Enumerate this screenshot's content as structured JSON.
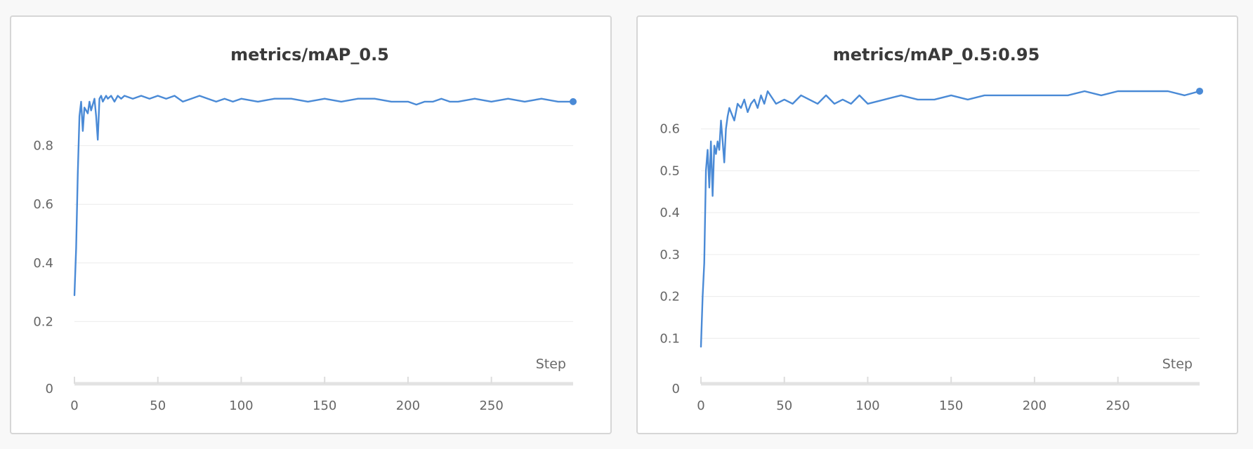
{
  "colors": {
    "series": "#4a8ad6",
    "grid": "#ececec",
    "axis": "#e3e3e3"
  },
  "chart_data": [
    {
      "type": "line",
      "title": "metrics/mAP_0.5",
      "xlabel": "Step",
      "ylabel": "",
      "xlim": [
        0,
        299
      ],
      "ylim": [
        0,
        1.0
      ],
      "x_ticks": [
        0,
        50,
        100,
        150,
        200,
        250
      ],
      "y_ticks": [
        0,
        0.2,
        0.4,
        0.6,
        0.8
      ],
      "y_tick_labels": [
        "0",
        "0.2",
        "0.4",
        "0.6",
        "0.8"
      ],
      "grid": true,
      "legend": "none",
      "end_marker": true,
      "series": [
        {
          "x": [
            0,
            1,
            2,
            3,
            4,
            5,
            6,
            7,
            8,
            9,
            10,
            11,
            12,
            13,
            14,
            15,
            16,
            17,
            18,
            19,
            20,
            22,
            24,
            26,
            28,
            30,
            35,
            40,
            45,
            50,
            55,
            60,
            65,
            70,
            75,
            80,
            85,
            90,
            95,
            100,
            110,
            120,
            130,
            140,
            150,
            160,
            170,
            180,
            190,
            200,
            205,
            210,
            215,
            220,
            225,
            230,
            240,
            250,
            260,
            270,
            280,
            290,
            299
          ],
          "y": [
            0.29,
            0.45,
            0.7,
            0.9,
            0.95,
            0.85,
            0.93,
            0.92,
            0.91,
            0.95,
            0.92,
            0.94,
            0.96,
            0.9,
            0.82,
            0.96,
            0.97,
            0.95,
            0.96,
            0.97,
            0.96,
            0.97,
            0.95,
            0.97,
            0.96,
            0.97,
            0.96,
            0.97,
            0.96,
            0.97,
            0.96,
            0.97,
            0.95,
            0.96,
            0.97,
            0.96,
            0.95,
            0.96,
            0.95,
            0.96,
            0.95,
            0.96,
            0.96,
            0.95,
            0.96,
            0.95,
            0.96,
            0.96,
            0.95,
            0.95,
            0.94,
            0.95,
            0.95,
            0.96,
            0.95,
            0.95,
            0.96,
            0.95,
            0.96,
            0.95,
            0.96,
            0.95,
            0.95
          ]
        }
      ]
    },
    {
      "type": "line",
      "title": "metrics/mAP_0.5:0.95",
      "xlabel": "Step",
      "ylabel": "",
      "xlim": [
        0,
        299
      ],
      "ylim": [
        0,
        0.7
      ],
      "x_ticks": [
        0,
        50,
        100,
        150,
        200,
        250
      ],
      "y_ticks": [
        0,
        0.1,
        0.2,
        0.3,
        0.4,
        0.5,
        0.6
      ],
      "y_tick_labels": [
        "0",
        "0.1",
        "0.2",
        "0.3",
        "0.4",
        "0.5",
        "0.6"
      ],
      "grid": true,
      "legend": "none",
      "end_marker": true,
      "series": [
        {
          "x": [
            0,
            1,
            2,
            3,
            4,
            5,
            6,
            7,
            8,
            9,
            10,
            11,
            12,
            13,
            14,
            15,
            16,
            17,
            18,
            20,
            22,
            24,
            26,
            28,
            30,
            32,
            34,
            36,
            38,
            40,
            45,
            50,
            55,
            60,
            65,
            70,
            75,
            80,
            85,
            90,
            95,
            100,
            110,
            120,
            130,
            140,
            150,
            160,
            170,
            180,
            190,
            200,
            210,
            220,
            230,
            240,
            250,
            260,
            270,
            280,
            290,
            299
          ],
          "y": [
            0.08,
            0.2,
            0.28,
            0.5,
            0.55,
            0.46,
            0.57,
            0.44,
            0.56,
            0.54,
            0.57,
            0.55,
            0.62,
            0.57,
            0.52,
            0.6,
            0.63,
            0.65,
            0.64,
            0.62,
            0.66,
            0.65,
            0.67,
            0.64,
            0.66,
            0.67,
            0.65,
            0.68,
            0.66,
            0.69,
            0.66,
            0.67,
            0.66,
            0.68,
            0.67,
            0.66,
            0.68,
            0.66,
            0.67,
            0.66,
            0.68,
            0.66,
            0.67,
            0.68,
            0.67,
            0.67,
            0.68,
            0.67,
            0.68,
            0.68,
            0.68,
            0.68,
            0.68,
            0.68,
            0.69,
            0.68,
            0.69,
            0.69,
            0.69,
            0.69,
            0.68,
            0.69
          ]
        }
      ]
    }
  ]
}
